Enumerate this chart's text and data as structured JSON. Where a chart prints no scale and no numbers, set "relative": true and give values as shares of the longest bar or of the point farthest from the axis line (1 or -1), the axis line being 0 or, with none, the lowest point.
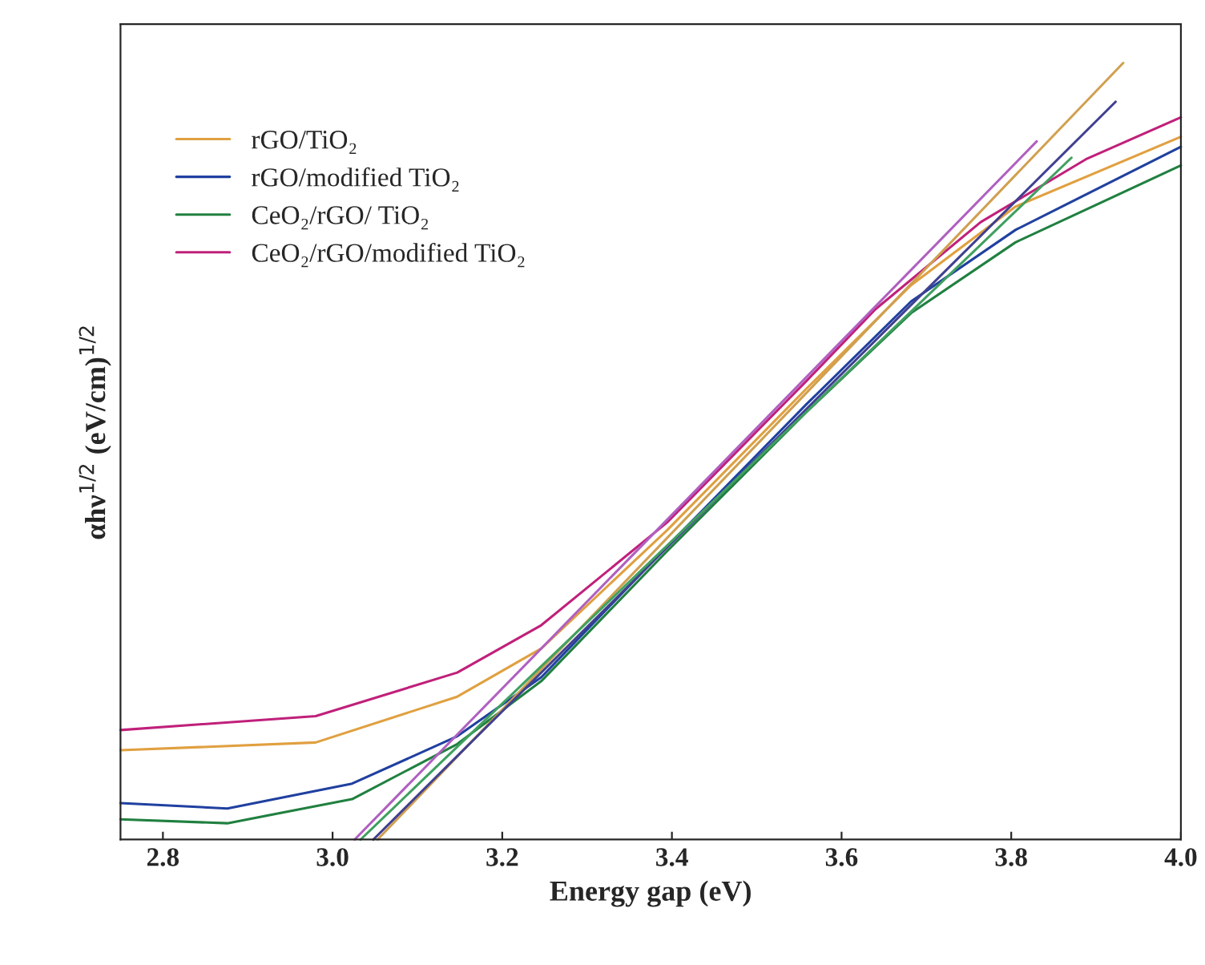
{
  "chart_data": {
    "type": "line",
    "relative": true,
    "xlabel": "Energy gap (eV)",
    "ylabel": "αhν$^{1/2}$ (eV/cm)$^{1/2}$",
    "xlim": [
      2.75,
      4.0
    ],
    "xticks": [
      2.8,
      {
        "value": 3.0,
        "label": "3.0"
      },
      3.2,
      3.4,
      3.6,
      3.8,
      {
        "value": 4.0,
        "label": "4.0"
      }
    ],
    "tick_labels": "x",
    "legend": "top left",
    "grid": false,
    "series": [
      {
        "name": "rGO/TiO₂",
        "color": "#e0a040",
        "x": [
          2.75,
          2.98,
          3.147,
          3.246,
          3.394,
          3.559,
          3.682,
          3.805,
          4.0
        ],
        "values": [
          0.115,
          0.125,
          0.184,
          0.246,
          0.398,
          0.581,
          0.714,
          0.815,
          0.905
        ]
      },
      {
        "name": "rGO/modified TiO₂",
        "color": "#2040a0",
        "x": [
          2.75,
          2.876,
          3.023,
          3.147,
          3.246,
          3.394,
          3.559,
          3.682,
          3.805,
          4.0
        ],
        "values": [
          0.047,
          0.04,
          0.072,
          0.133,
          0.209,
          0.377,
          0.561,
          0.693,
          0.785,
          0.892
        ]
      },
      {
        "name": "CeO₂/rGO/ TiO₂",
        "color": "#208040",
        "x": [
          2.75,
          2.876,
          3.023,
          3.147,
          3.246,
          3.394,
          3.559,
          3.682,
          3.805,
          4.0
        ],
        "values": [
          0.026,
          0.021,
          0.052,
          0.123,
          0.204,
          0.371,
          0.551,
          0.678,
          0.769,
          0.868
        ]
      },
      {
        "name": "CeO₂/rGO/modified TiO₂",
        "color": "#c0207a",
        "x": [
          2.75,
          2.98,
          3.147,
          3.246,
          3.394,
          3.559,
          3.64,
          3.764,
          3.888,
          4.0
        ],
        "values": [
          0.141,
          0.159,
          0.215,
          0.276,
          0.408,
          0.591,
          0.683,
          0.795,
          0.876,
          0.93
        ]
      },
      {
        "color": "#d0a050",
        "x": [
          3.053,
          3.932
        ],
        "values": [
          0,
          1.0
        ]
      },
      {
        "color": "#404090",
        "x": [
          3.048,
          3.923
        ],
        "values": [
          0,
          0.95
        ]
      },
      {
        "color": "#40a060",
        "x": [
          3.033,
          3.871
        ],
        "values": [
          0,
          0.878
        ]
      },
      {
        "color": "#b060c0",
        "x": [
          3.026,
          3.83
        ],
        "values": [
          0,
          0.899
        ]
      }
    ]
  }
}
